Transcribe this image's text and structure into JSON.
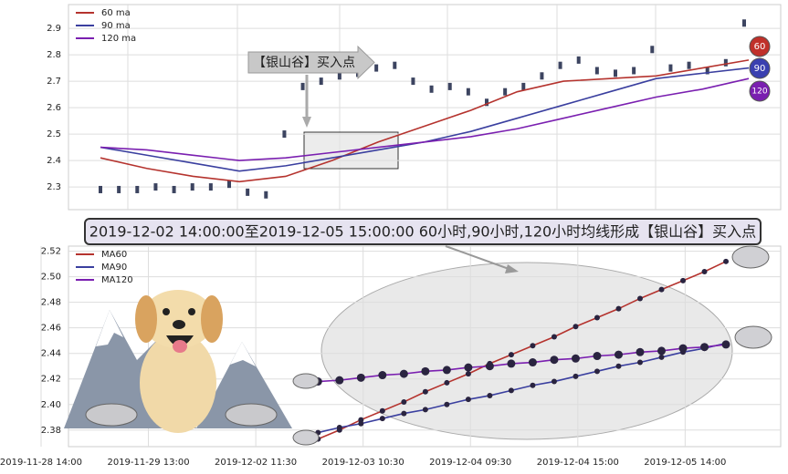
{
  "chart_data": [
    {
      "type": "line",
      "annotations": [
        "【银山谷】买入点"
      ],
      "badges": [
        "60",
        "90",
        "120"
      ],
      "ylim": [
        2.214,
        2.99
      ],
      "yticks": [
        2.3,
        2.4,
        2.5,
        2.6,
        2.7,
        2.8,
        2.9
      ],
      "grid": true,
      "legend": "upper left",
      "series": [
        {
          "name": "60 ma",
          "color": "#b5332e",
          "values": [
            2.41,
            2.37,
            2.34,
            2.32,
            2.34,
            2.4,
            2.47,
            2.53,
            2.59,
            2.66,
            2.7,
            2.71,
            2.72,
            2.75,
            2.78
          ]
        },
        {
          "name": "90 ma",
          "color": "#3a3f9f",
          "values": [
            2.45,
            2.42,
            2.39,
            2.36,
            2.38,
            2.41,
            2.44,
            2.47,
            2.51,
            2.56,
            2.61,
            2.66,
            2.71,
            2.73,
            2.75
          ]
        },
        {
          "name": "120 ma",
          "color": "#7a1fb0",
          "values": [
            2.45,
            2.44,
            2.42,
            2.4,
            2.41,
            2.43,
            2.45,
            2.47,
            2.49,
            2.52,
            2.56,
            2.6,
            2.64,
            2.67,
            2.71
          ]
        }
      ],
      "closes": [
        2.29,
        2.29,
        2.29,
        2.3,
        2.29,
        2.3,
        2.3,
        2.31,
        2.28,
        2.27,
        2.5,
        2.68,
        2.7,
        2.72,
        2.73,
        2.75,
        2.76,
        2.7,
        2.67,
        2.68,
        2.66,
        2.62,
        2.66,
        2.68,
        2.72,
        2.76,
        2.78,
        2.74,
        2.73,
        2.74,
        2.82,
        2.75,
        2.76,
        2.74,
        2.77,
        2.92
      ]
    },
    {
      "type": "line",
      "title": "2019-12-02 14:00:00至2019-12-05 15:00:00 60小时,90小时,120小时均线形成【银山谷】买入点",
      "xlim": [
        -0.255,
        6.89
      ],
      "xticks": [
        {
          "value": 0,
          "label": "2019-11-28 14:00"
        },
        {
          "value": 1,
          "label": "2019-11-29 13:00"
        },
        {
          "value": 2,
          "label": "2019-12-02 11:30"
        },
        {
          "value": 3,
          "label": "2019-12-03 10:30"
        },
        {
          "value": 4,
          "label": "2019-12-04 09:30"
        },
        {
          "value": 5,
          "label": "2019-12-04 15:00"
        },
        {
          "value": 6,
          "label": "2019-12-05 14:00"
        }
      ],
      "ylim": [
        2.367,
        2.524
      ],
      "yticks": [
        2.38,
        {
          "value": 2.4,
          "label": "2.40"
        },
        2.42,
        2.44,
        2.46,
        2.48,
        {
          "value": 2.5,
          "label": "2.50"
        },
        2.52
      ],
      "grid": true,
      "legend": "upper left",
      "x": [
        2.58,
        2.78,
        2.98,
        3.18,
        3.38,
        3.58,
        3.78,
        3.98,
        4.18,
        4.38,
        4.58,
        4.78,
        4.98,
        5.18,
        5.38,
        5.58,
        5.78,
        5.98,
        6.18,
        6.38
      ],
      "series": [
        {
          "name": "MA60",
          "color": "#b5332e",
          "values": [
            2.373,
            2.38,
            2.388,
            2.395,
            2.402,
            2.41,
            2.417,
            2.424,
            2.432,
            2.439,
            2.446,
            2.453,
            2.461,
            2.468,
            2.475,
            2.483,
            2.49,
            2.497,
            2.504,
            2.512
          ]
        },
        {
          "name": "MA90",
          "color": "#3a3f9f",
          "values": [
            2.378,
            2.382,
            2.385,
            2.389,
            2.393,
            2.396,
            2.4,
            2.404,
            2.407,
            2.411,
            2.415,
            2.418,
            2.422,
            2.426,
            2.43,
            2.433,
            2.437,
            2.441,
            2.444,
            2.448
          ]
        },
        {
          "name": "MA120",
          "color": "#7a1fb0",
          "values": [
            2.418,
            2.419,
            2.421,
            2.423,
            2.424,
            2.426,
            2.427,
            2.429,
            2.43,
            2.432,
            2.433,
            2.435,
            2.436,
            2.438,
            2.439,
            2.441,
            2.442,
            2.444,
            2.445,
            2.447
          ]
        }
      ]
    }
  ]
}
